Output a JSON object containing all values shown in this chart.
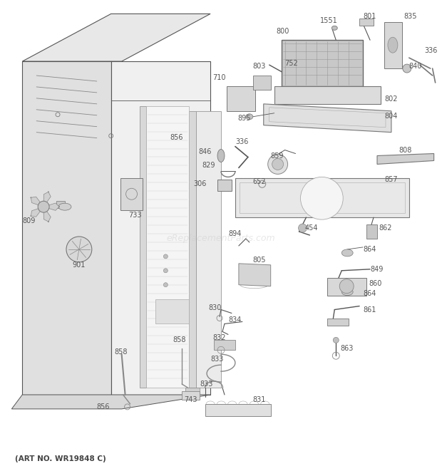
{
  "footer": "(ART NO. WR19848 C)",
  "bg_color": "#ffffff",
  "line_color": "#555555",
  "label_color": "#555555",
  "watermark": "eReplacementParts.com",
  "figsize": [
    6.2,
    6.61
  ],
  "dpi": 100
}
